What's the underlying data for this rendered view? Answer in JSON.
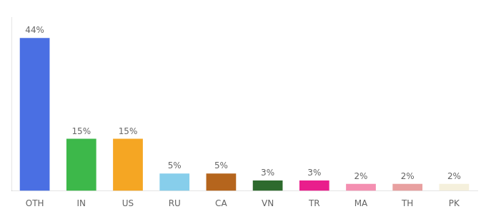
{
  "chart_data": {
    "type": "bar",
    "categories": [
      "OTH",
      "IN",
      "US",
      "RU",
      "CA",
      "VN",
      "TR",
      "MA",
      "TH",
      "PK"
    ],
    "values": [
      44,
      15,
      15,
      5,
      5,
      3,
      3,
      2,
      2,
      2
    ],
    "value_labels": [
      "44%",
      "15%",
      "15%",
      "5%",
      "5%",
      "3%",
      "3%",
      "2%",
      "2%",
      "2%"
    ],
    "colors": [
      "#4a6fe3",
      "#3db84a",
      "#f5a623",
      "#87ceeb",
      "#b5651d",
      "#2d6a2d",
      "#e91e8c",
      "#f48fb1",
      "#e8a0a0",
      "#f5f0dc"
    ],
    "ylim": [
      0,
      50
    ],
    "data_labels": true,
    "tick_labels": "x",
    "grid": false
  }
}
